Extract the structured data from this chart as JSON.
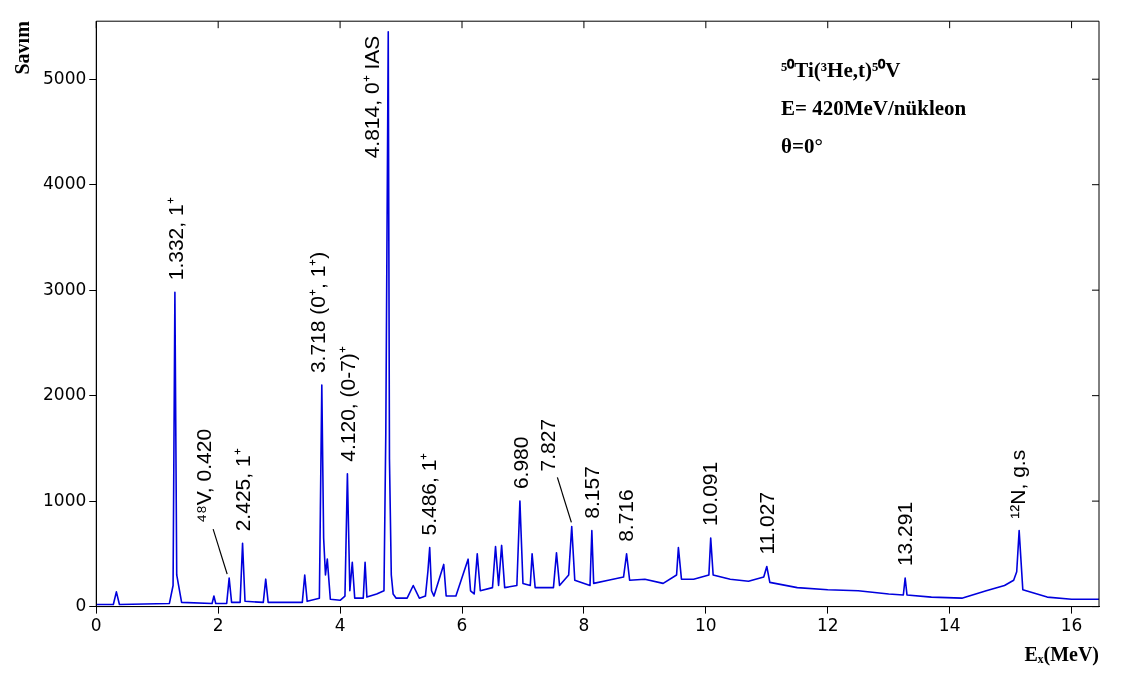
{
  "chart_data": {
    "type": "line",
    "xlabel": "Eₓ(MeV)",
    "ylabel": "Savım",
    "xlim": [
      0,
      16.45
    ],
    "ylim": [
      0,
      5550
    ],
    "xticks": [
      0,
      2,
      4,
      6,
      8,
      10,
      12,
      14,
      16
    ],
    "yticks": [
      0,
      1000,
      2000,
      3000,
      4000,
      5000
    ],
    "grid": false,
    "legend": false,
    "marker": "none",
    "line_style": "solid",
    "series": [
      {
        "color": "#0000dd",
        "x": [
          0,
          0.28,
          0.33,
          0.38,
          1.2,
          1.26,
          1.29,
          1.32,
          1.4,
          1.9,
          1.93,
          1.96,
          2.14,
          2.18,
          2.22,
          2.36,
          2.4,
          2.44,
          2.74,
          2.78,
          2.82,
          3.1,
          3.38,
          3.42,
          3.46,
          3.66,
          3.7,
          3.73,
          3.76,
          3.79,
          3.84,
          4.0,
          4.08,
          4.12,
          4.16,
          4.2,
          4.24,
          4.38,
          4.41,
          4.44,
          4.6,
          4.72,
          4.75,
          4.79,
          4.81,
          4.84,
          4.87,
          4.92,
          5.1,
          5.2,
          5.3,
          5.4,
          5.44,
          5.47,
          5.5,
          5.54,
          5.7,
          5.74,
          5.9,
          6.1,
          6.14,
          6.2,
          6.25,
          6.3,
          6.5,
          6.55,
          6.6,
          6.65,
          6.7,
          6.9,
          6.95,
          7.0,
          7.12,
          7.15,
          7.2,
          7.5,
          7.55,
          7.6,
          7.75,
          7.8,
          7.85,
          8.1,
          8.13,
          8.16,
          8.4,
          8.65,
          8.7,
          8.75,
          9.0,
          9.3,
          9.52,
          9.55,
          9.6,
          9.8,
          10.05,
          10.08,
          10.12,
          10.4,
          10.7,
          10.95,
          11.0,
          11.05,
          11.5,
          12.0,
          12.5,
          13.0,
          13.24,
          13.27,
          13.3,
          13.7,
          14.2,
          14.6,
          14.9,
          15.05,
          15.1,
          15.14,
          15.2,
          15.6,
          16.0,
          16.45
        ],
        "values": [
          20,
          20,
          140,
          20,
          30,
          200,
          2980,
          300,
          40,
          30,
          100,
          30,
          30,
          270,
          40,
          40,
          600,
          50,
          40,
          260,
          40,
          40,
          40,
          300,
          50,
          80,
          2100,
          650,
          300,
          450,
          70,
          60,
          100,
          1260,
          150,
          420,
          80,
          80,
          420,
          90,
          120,
          150,
          1650,
          5450,
          1400,
          300,
          120,
          80,
          80,
          200,
          80,
          100,
          330,
          560,
          150,
          100,
          400,
          100,
          100,
          450,
          150,
          120,
          500,
          150,
          180,
          570,
          200,
          580,
          180,
          200,
          1000,
          220,
          200,
          500,
          180,
          180,
          510,
          200,
          300,
          760,
          250,
          200,
          720,
          220,
          250,
          280,
          500,
          250,
          260,
          220,
          300,
          560,
          260,
          260,
          300,
          650,
          300,
          260,
          240,
          280,
          380,
          230,
          180,
          160,
          150,
          120,
          110,
          270,
          110,
          90,
          80,
          150,
          200,
          250,
          330,
          720,
          160,
          90,
          70,
          70
        ]
      }
    ],
    "annotations": [
      {
        "text": "1.332, 1⁺",
        "x": 1.332,
        "y": 2980
      },
      {
        "text": "⁴⁸V, 0.420",
        "x": 2.18,
        "y": 270
      },
      {
        "text": "2.425, 1⁺",
        "x": 2.425,
        "y": 600
      },
      {
        "text": "3.718 (0⁺, 1⁺)",
        "x": 3.66,
        "y": 2100
      },
      {
        "text": "4.120, (0-7)⁺",
        "x": 4.15,
        "y": 1260
      },
      {
        "text": "4.814, 0⁺ IAS",
        "x": 4.81,
        "y": 5450
      },
      {
        "text": "5.486, 1⁺",
        "x": 5.486,
        "y": 560
      },
      {
        "text": "6.980",
        "x": 6.98,
        "y": 1000
      },
      {
        "text": "7.827",
        "x": 7.827,
        "y": 760
      },
      {
        "text": "8.157",
        "x": 8.157,
        "y": 720
      },
      {
        "text": "8.716",
        "x": 8.716,
        "y": 500
      },
      {
        "text": "10.091",
        "x": 10.091,
        "y": 650
      },
      {
        "text": "11.027",
        "x": 11.027,
        "y": 380
      },
      {
        "text": "13.291",
        "x": 13.291,
        "y": 270
      },
      {
        "text": "¹²N, g.s",
        "x": 15.14,
        "y": 720
      },
      "⁵⁰Ti(³He,t)⁵⁰V",
      "E= 420MeV/nükleon",
      "θ=0°"
    ]
  }
}
